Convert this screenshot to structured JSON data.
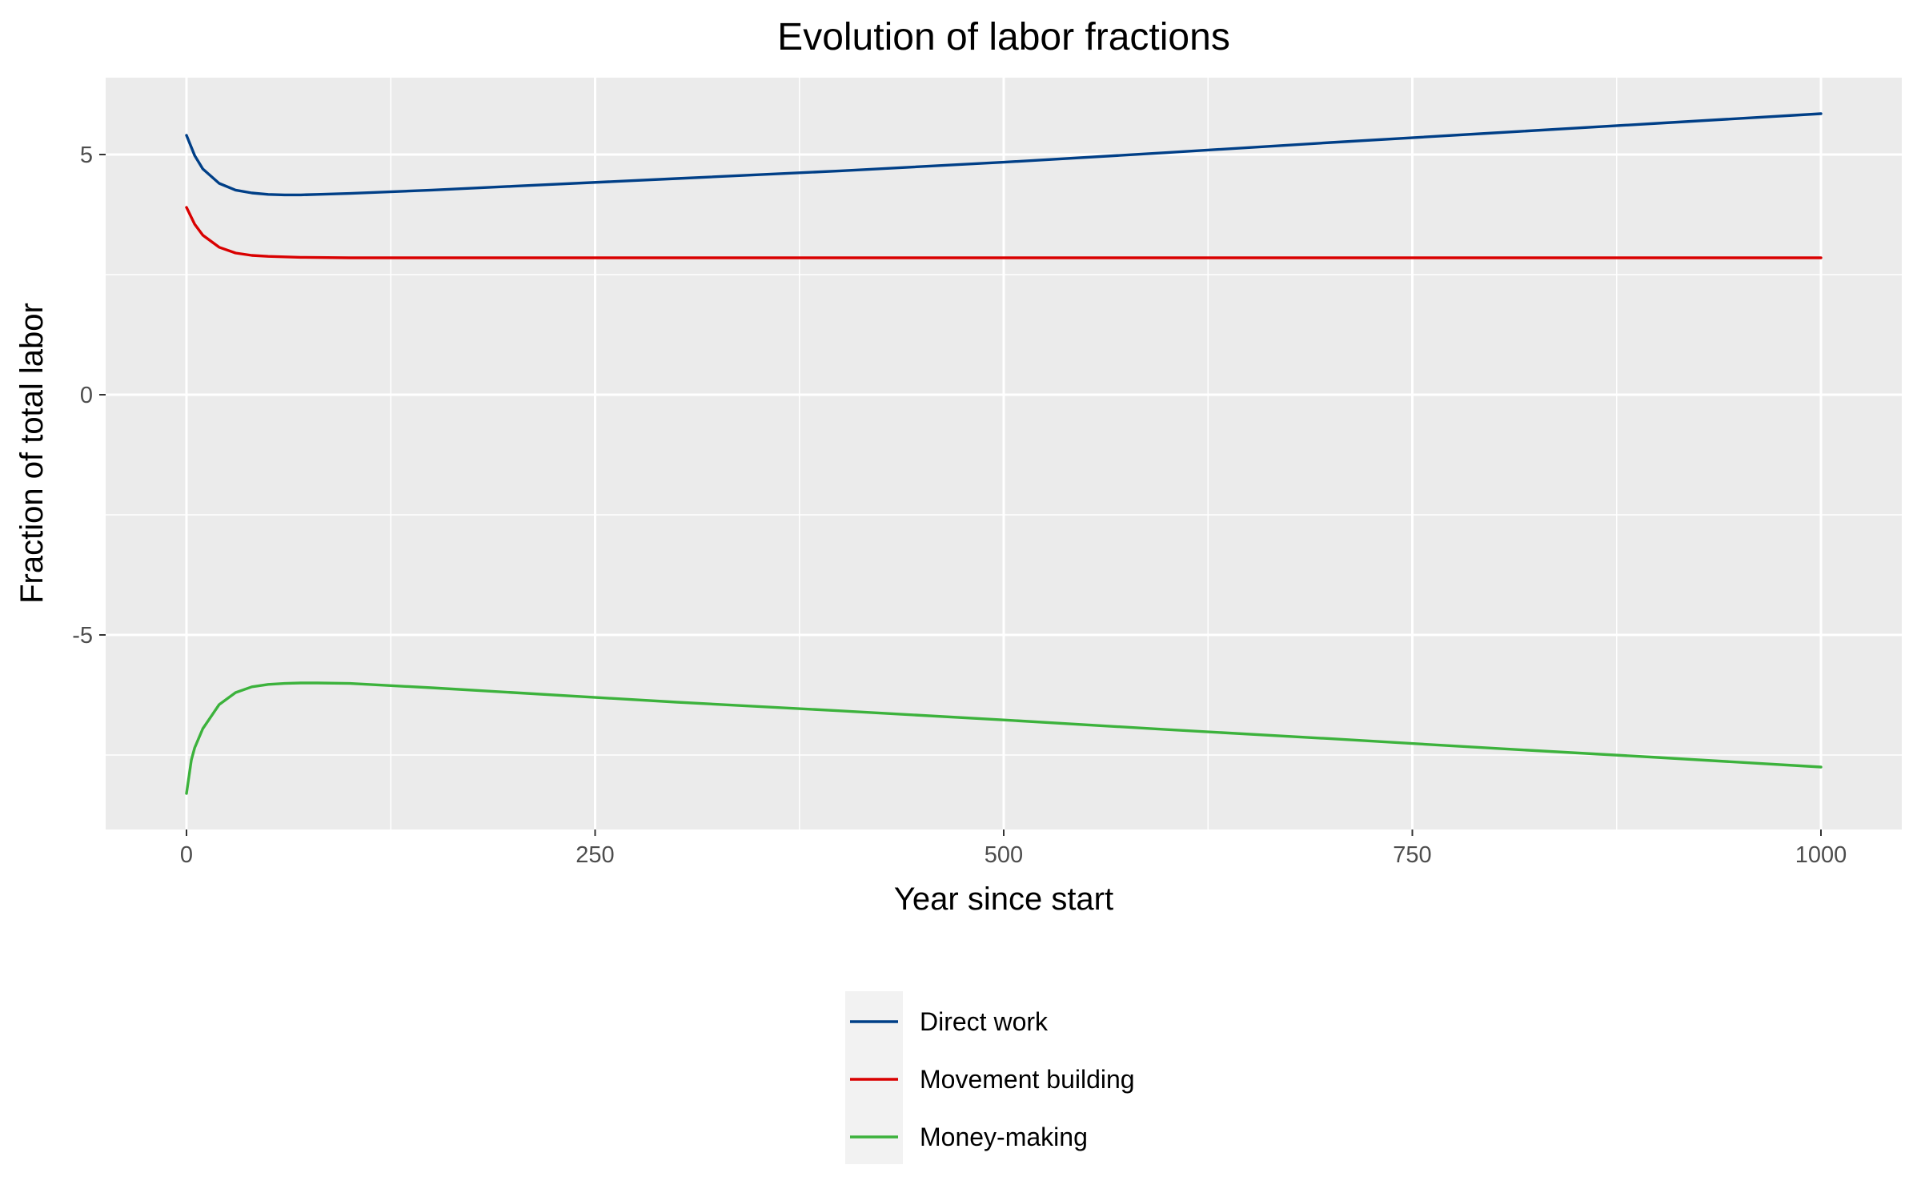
{
  "chart_data": {
    "type": "line",
    "title": "Evolution of labor fractions",
    "xlabel": "Year since start",
    "ylabel": "Fraction of total labor",
    "xlim": [
      -100,
      1100
    ],
    "ylim": [
      -9.0,
      6.6
    ],
    "x_ticks": [
      0,
      250,
      500,
      750,
      1000
    ],
    "x_tick_labels": [
      "0",
      "250",
      "500",
      "750",
      "1000"
    ],
    "y_ticks": [
      -5,
      0,
      5
    ],
    "y_tick_labels": [
      "-5",
      "0",
      "5"
    ],
    "grid": true,
    "legend_position": "bottom",
    "series": [
      {
        "name": "Direct work",
        "color": "#003f87",
        "points": [
          [
            0,
            5.4
          ],
          [
            5,
            4.98
          ],
          [
            10,
            4.7
          ],
          [
            20,
            4.4
          ],
          [
            30,
            4.26
          ],
          [
            40,
            4.2
          ],
          [
            50,
            4.17
          ],
          [
            60,
            4.16
          ],
          [
            70,
            4.16
          ],
          [
            80,
            4.17
          ],
          [
            100,
            4.19
          ],
          [
            150,
            4.26
          ],
          [
            200,
            4.34
          ],
          [
            300,
            4.5
          ],
          [
            400,
            4.66
          ],
          [
            500,
            4.84
          ],
          [
            600,
            5.04
          ],
          [
            700,
            5.25
          ],
          [
            800,
            5.45
          ],
          [
            900,
            5.65
          ],
          [
            1000,
            5.85
          ]
        ]
      },
      {
        "name": "Movement building",
        "color": "#d90000",
        "points": [
          [
            0,
            3.9
          ],
          [
            5,
            3.55
          ],
          [
            10,
            3.32
          ],
          [
            20,
            3.07
          ],
          [
            30,
            2.95
          ],
          [
            40,
            2.9
          ],
          [
            50,
            2.88
          ],
          [
            70,
            2.86
          ],
          [
            100,
            2.85
          ],
          [
            200,
            2.85
          ],
          [
            400,
            2.85
          ],
          [
            600,
            2.85
          ],
          [
            800,
            2.85
          ],
          [
            1000,
            2.85
          ]
        ]
      },
      {
        "name": "Money-making",
        "color": "#3cb23c",
        "points": [
          [
            0,
            -8.3
          ],
          [
            3,
            -7.6
          ],
          [
            5,
            -7.35
          ],
          [
            10,
            -6.95
          ],
          [
            20,
            -6.45
          ],
          [
            30,
            -6.2
          ],
          [
            40,
            -6.08
          ],
          [
            50,
            -6.03
          ],
          [
            60,
            -6.01
          ],
          [
            70,
            -6.0
          ],
          [
            80,
            -6.0
          ],
          [
            100,
            -6.01
          ],
          [
            150,
            -6.1
          ],
          [
            200,
            -6.2
          ],
          [
            300,
            -6.4
          ],
          [
            400,
            -6.58
          ],
          [
            500,
            -6.77
          ],
          [
            600,
            -6.97
          ],
          [
            700,
            -7.16
          ],
          [
            800,
            -7.36
          ],
          [
            900,
            -7.55
          ],
          [
            1000,
            -7.75
          ]
        ]
      }
    ]
  }
}
